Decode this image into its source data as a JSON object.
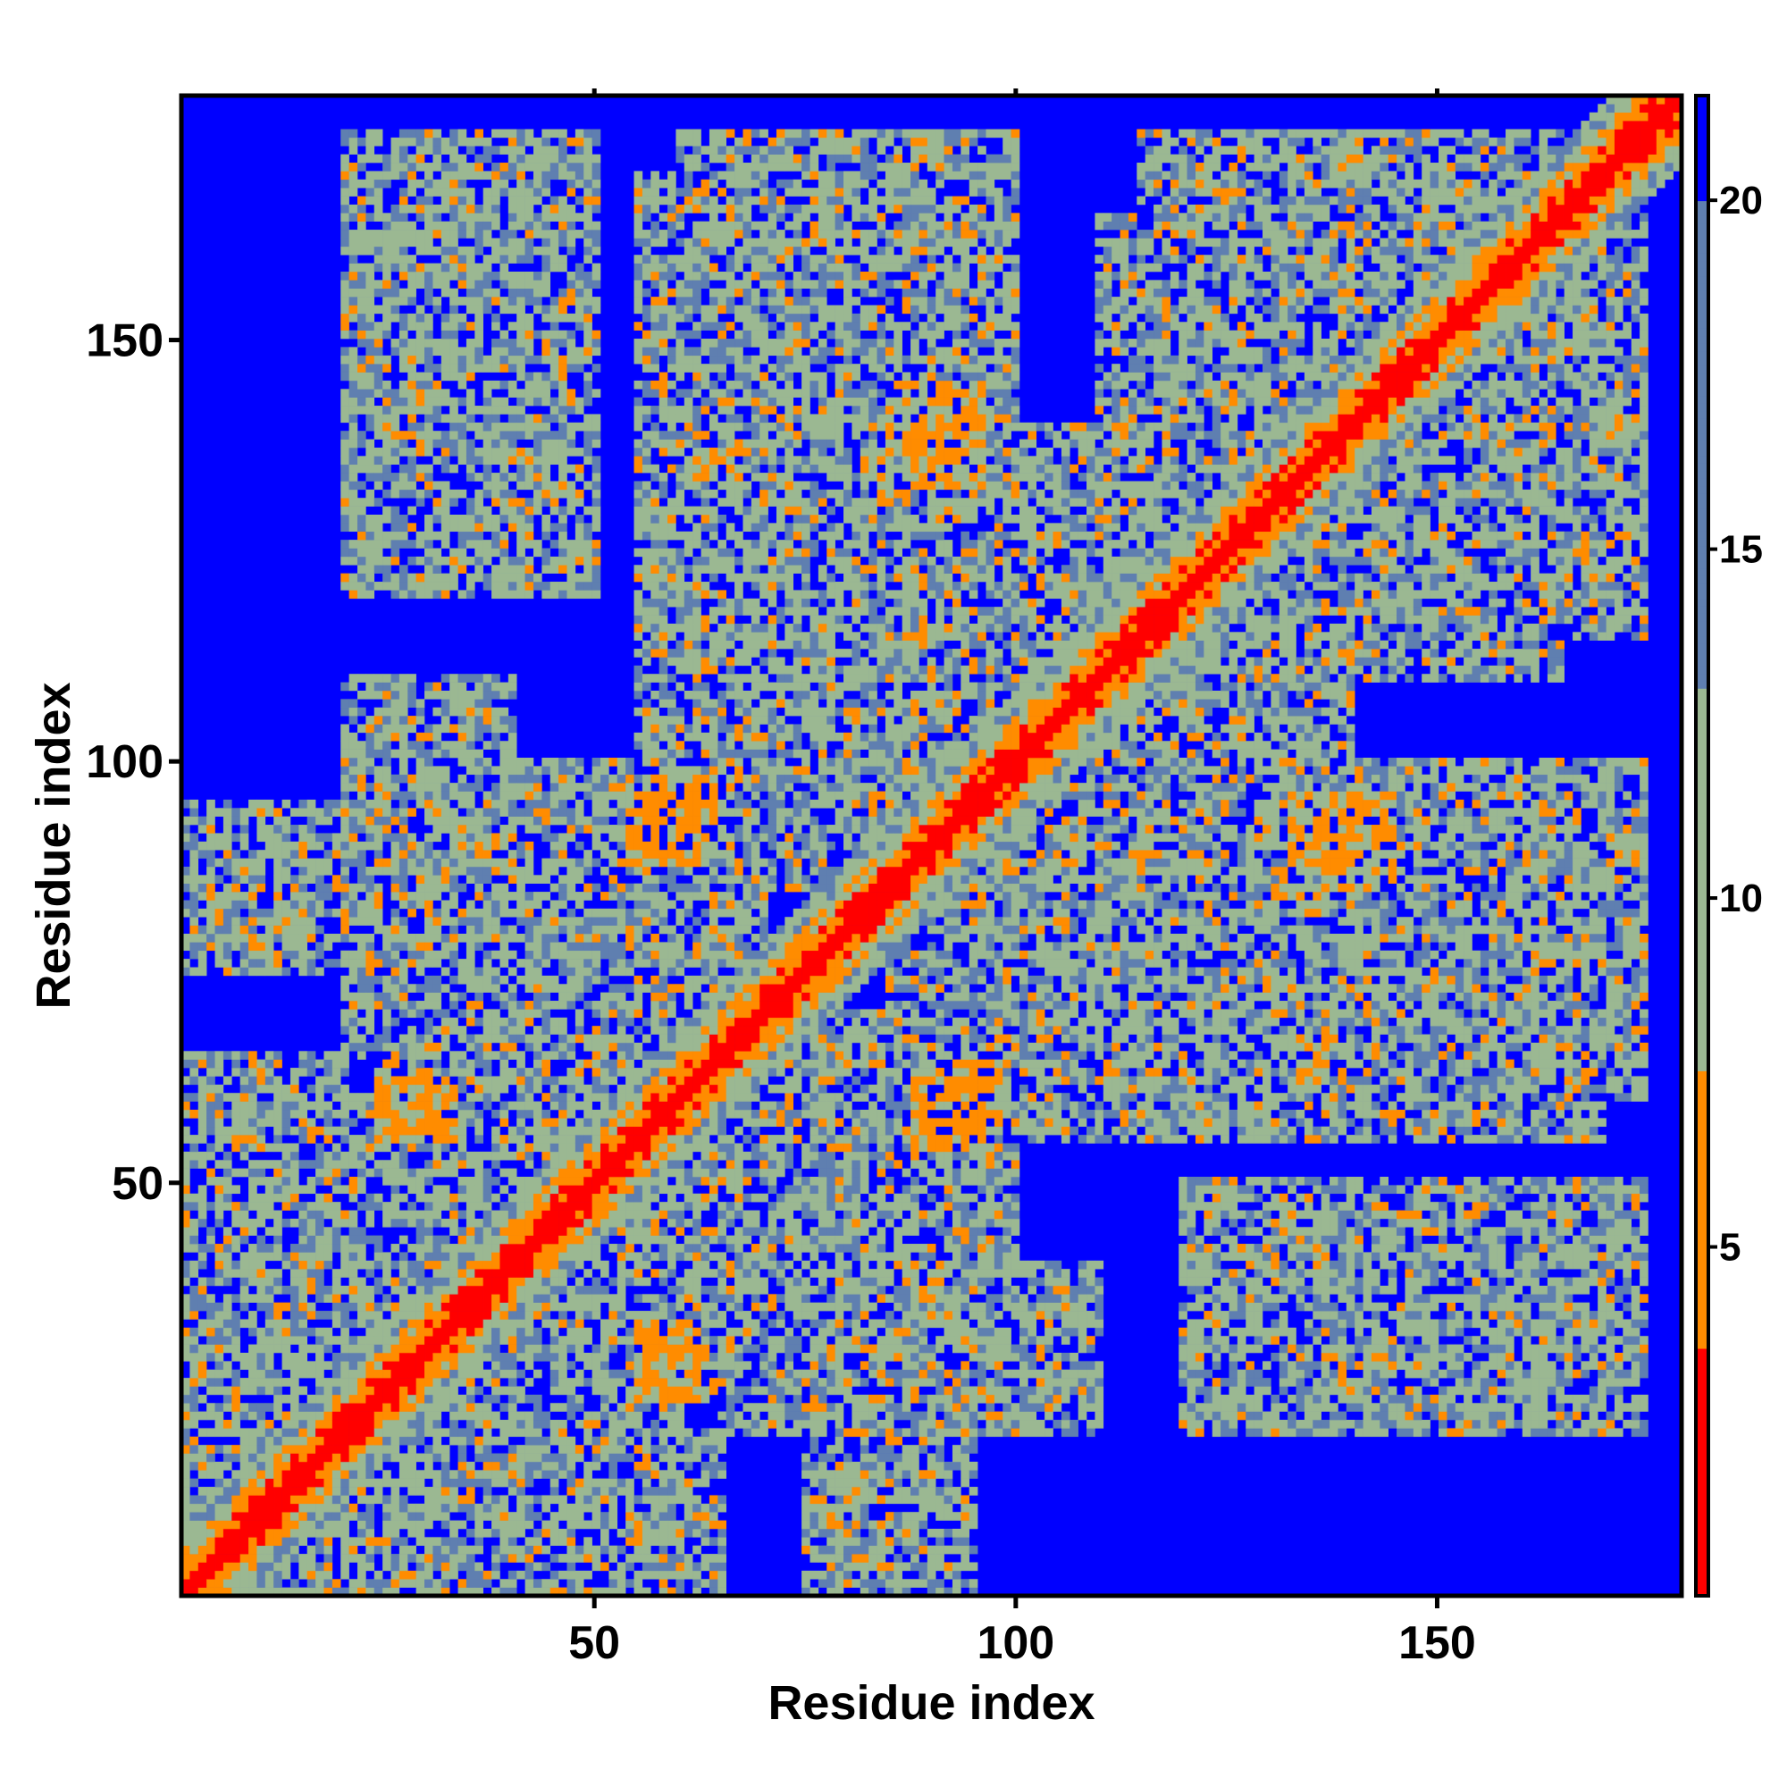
{
  "chart_data": {
    "type": "heatmap",
    "title": "",
    "xlabel": "Residue index",
    "ylabel": "Residue index",
    "xlim": [
      1,
      179
    ],
    "ylim": [
      1,
      179
    ],
    "x_ticks": [
      50,
      100,
      150
    ],
    "y_ticks": [
      50,
      100,
      150
    ],
    "colorbar": {
      "ticks": [
        5,
        10,
        15,
        20
      ],
      "range": [
        0,
        21.5
      ]
    },
    "n_residues": 179,
    "colors": {
      "background": "#0000ff",
      "near": "#ff0000",
      "close": "#ff8c00",
      "mid": "#9bb892",
      "far": "#5f7fb0"
    },
    "contact_blocks": [
      {
        "x": [
          1,
          60
        ],
        "y": [
          1,
          60
        ],
        "value": 9
      },
      {
        "x": [
          1,
          20
        ],
        "y": [
          20,
          65
        ],
        "value": 10
      },
      {
        "x": [
          25,
          45
        ],
        "y": [
          50,
          95
        ],
        "value": 10
      },
      {
        "x": [
          20,
          40
        ],
        "y": [
          65,
          110
        ],
        "value": 12
      },
      {
        "x": [
          55,
          100
        ],
        "y": [
          30,
          70
        ],
        "value": 10
      },
      {
        "x": [
          75,
          95
        ],
        "y": [
          1,
          35
        ],
        "value": 11
      },
      {
        "x": [
          55,
          90
        ],
        "y": [
          85,
          130
        ],
        "value": 10
      },
      {
        "x": [
          55,
          85
        ],
        "y": [
          125,
          170
        ],
        "value": 11
      },
      {
        "x": [
          85,
          120
        ],
        "y": [
          90,
          140
        ],
        "value": 11
      },
      {
        "x": [
          90,
          140
        ],
        "y": [
          55,
          80
        ],
        "value": 11
      },
      {
        "x": [
          115,
          165
        ],
        "y": [
          110,
          175
        ],
        "value": 11
      },
      {
        "x": [
          130,
          175
        ],
        "y": [
          60,
          100
        ],
        "value": 12
      },
      {
        "x": [
          120,
          170
        ],
        "y": [
          20,
          50
        ],
        "value": 13
      },
      {
        "x": [
          20,
          50
        ],
        "y": [
          135,
          175
        ],
        "value": 13
      }
    ],
    "bright_strips": [
      {
        "x": [
          88,
          96
        ],
        "y": [
          133,
          145
        ],
        "value": 5
      },
      {
        "x": [
          137,
          145
        ],
        "y": [
          85,
          95
        ],
        "value": 5
      },
      {
        "x": [
          55,
          62
        ],
        "y": [
          25,
          33
        ],
        "value": 5
      },
      {
        "x": [
          24,
          30
        ],
        "y": [
          55,
          63
        ],
        "value": 5
      },
      {
        "x": [
          57,
          64
        ],
        "y": [
          90,
          98
        ],
        "value": 5
      },
      {
        "x": [
          88,
          96
        ],
        "y": [
          54,
          62
        ],
        "value": 5
      }
    ]
  }
}
